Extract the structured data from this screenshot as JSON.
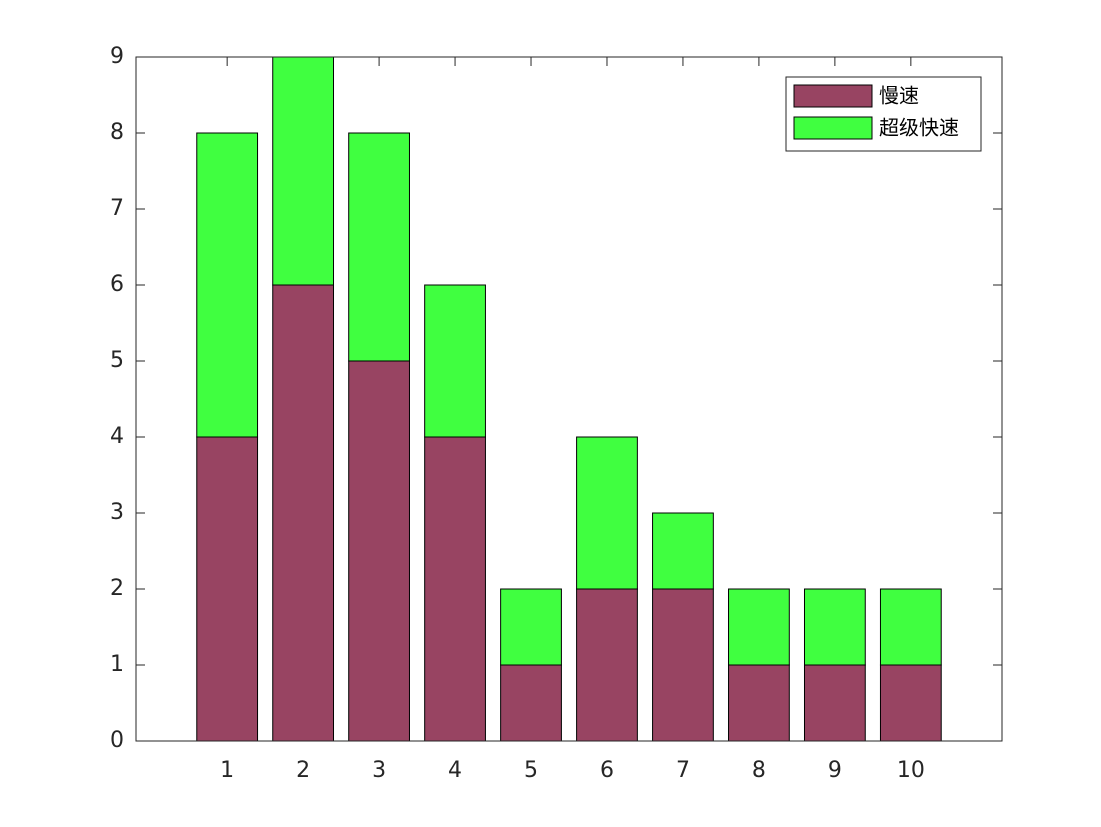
{
  "chart_data": {
    "type": "stacked_bar",
    "categories": [
      "1",
      "2",
      "3",
      "4",
      "5",
      "6",
      "7",
      "8",
      "9",
      "10"
    ],
    "series": [
      {
        "name": "慢速",
        "color": "#984462",
        "values": [
          4,
          6,
          5,
          4,
          1,
          2,
          2,
          1,
          1,
          1
        ]
      },
      {
        "name": "超级快速",
        "color": "#40ff40",
        "values": [
          4,
          3,
          3,
          2,
          1,
          2,
          1,
          1,
          1,
          1
        ]
      }
    ],
    "ylim": [
      0,
      9
    ],
    "yticks": [
      0,
      1,
      2,
      3,
      4,
      5,
      6,
      7,
      8,
      9
    ],
    "legend": "top-right"
  }
}
